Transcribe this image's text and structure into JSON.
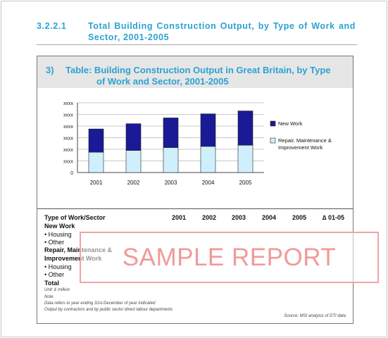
{
  "section": {
    "number": "3.2.2.1",
    "title_line1": "Total Building Construction Output, by Type of Work and",
    "title_line2": "Sector, 2001-2005"
  },
  "figure": {
    "number": "3)",
    "title_line1": "Table: Building Construction Output in Great Britain, by Type",
    "title_line2": "of Work and Sector, 2001-2005"
  },
  "chart_data": {
    "type": "bar",
    "stacked": true,
    "categories": [
      "2001",
      "2002",
      "2003",
      "2004",
      "2005"
    ],
    "yticks": [
      "0",
      "xxxx",
      "xxxx",
      "xxxx",
      "xxxx",
      "xxxx",
      "xxxx"
    ],
    "ylim": [
      0,
      6
    ],
    "grid": true,
    "legend_position": "right",
    "series": [
      {
        "name": "Repair, Maintenance & Improvement Work",
        "values": [
          1.75,
          1.9,
          2.15,
          2.25,
          2.35
        ],
        "color": "#cfeffd"
      },
      {
        "name": "New Work",
        "values": [
          2.0,
          2.3,
          2.55,
          2.8,
          2.95
        ],
        "color": "#1a1a96"
      }
    ]
  },
  "table": {
    "header_label": "Type of Work/Sector",
    "columns": [
      "2001",
      "2002",
      "2003",
      "2004",
      "2005",
      "∆ 01-05"
    ],
    "rows": {
      "new_work": "New Work",
      "nw_housing": "• Housing",
      "nw_other": "• Other",
      "repair_1": "Repair, Maintenance &",
      "repair_2": "Improvement Work",
      "rm_housing": "• Housing",
      "rm_other": "• Other",
      "total": "Total"
    }
  },
  "notes": {
    "unit": "Unit: £ million",
    "note": "Note",
    "note1": "Data refers to year ending 31st December of year indicated",
    "note2": "Output by contractors and by public sector direct labour departments"
  },
  "source": "Source: MSI analysis of DTI data",
  "watermark": "SAMPLE REPORT"
}
